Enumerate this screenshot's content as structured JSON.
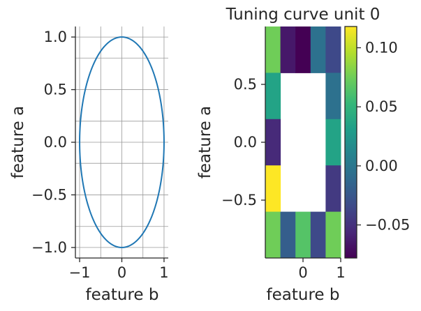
{
  "chart_data": [
    {
      "type": "line",
      "title": "",
      "xlabel": "feature b",
      "ylabel": "feature a",
      "xlim": [
        -1.1,
        1.1
      ],
      "ylim": [
        -1.1,
        1.1
      ],
      "xticks": [
        -1,
        0,
        1
      ],
      "xtick_labels": [
        "−1",
        "0",
        "1"
      ],
      "yticks": [
        -1,
        -0.5,
        0,
        0.5,
        1
      ],
      "ytick_labels": [
        "−1.0",
        "−0.5",
        "0.0",
        "0.5",
        "1.0"
      ],
      "grid": true,
      "series": [
        {
          "curve": "unit circle",
          "x_formula": "sin(t)",
          "y_formula": "cos(t)",
          "t_range": [
            0,
            6.2832
          ],
          "color": "#1f77b4"
        }
      ]
    },
    {
      "type": "heatmap",
      "title": "Tuning curve unit 0",
      "xlabel": "feature b",
      "ylabel": "feature a",
      "xlim": [
        -1,
        1
      ],
      "ylim": [
        -1,
        1
      ],
      "xticks": [
        0,
        1
      ],
      "xtick_labels": [
        "0",
        "1"
      ],
      "yticks": [
        -0.5,
        0,
        0.5
      ],
      "ytick_labels": [
        "−0.5",
        "0.0",
        "0.5"
      ],
      "grid": false,
      "colormap": "viridis",
      "grid_size": [
        5,
        5
      ],
      "values": [
        [
          0.075,
          -0.065,
          -0.078,
          -0.005,
          -0.035
        ],
        [
          0.035,
          null,
          null,
          null,
          -0.005
        ],
        [
          -0.055,
          null,
          null,
          null,
          0.035
        ],
        [
          0.118,
          null,
          null,
          null,
          -0.045
        ],
        [
          0.075,
          -0.02,
          0.065,
          -0.035,
          0.075
        ]
      ],
      "colorbar": {
        "min": -0.078,
        "max": 0.118,
        "ticks": [
          -0.05,
          0,
          0.05,
          0.1
        ],
        "tick_labels": [
          "−0.05",
          "0.00",
          "0.05",
          "0.10"
        ]
      }
    }
  ]
}
